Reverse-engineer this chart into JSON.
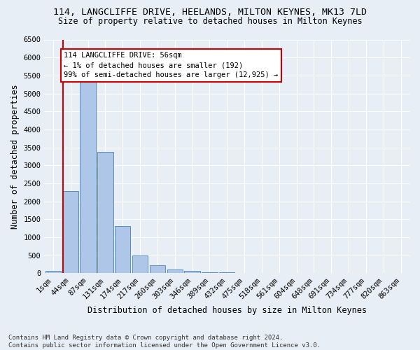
{
  "title_line1": "114, LANGCLIFFE DRIVE, HEELANDS, MILTON KEYNES, MK13 7LD",
  "title_line2": "Size of property relative to detached houses in Milton Keynes",
  "xlabel": "Distribution of detached houses by size in Milton Keynes",
  "ylabel": "Number of detached properties",
  "footnote": "Contains HM Land Registry data © Crown copyright and database right 2024.\nContains public sector information licensed under the Open Government Licence v3.0.",
  "bar_labels": [
    "1sqm",
    "44sqm",
    "87sqm",
    "131sqm",
    "174sqm",
    "217sqm",
    "260sqm",
    "303sqm",
    "346sqm",
    "389sqm",
    "432sqm",
    "475sqm",
    "518sqm",
    "561sqm",
    "604sqm",
    "648sqm",
    "691sqm",
    "734sqm",
    "777sqm",
    "820sqm",
    "863sqm"
  ],
  "bar_values": [
    70,
    2280,
    5400,
    3380,
    1310,
    490,
    210,
    95,
    60,
    30,
    20,
    10,
    0,
    0,
    0,
    0,
    0,
    0,
    0,
    0,
    0
  ],
  "bar_color": "#aec6e8",
  "bar_edge_color": "#5a8fc0",
  "annotation_text": "114 LANGCLIFFE DRIVE: 56sqm\n← 1% of detached houses are smaller (192)\n99% of semi-detached houses are larger (12,925) →",
  "annotation_box_color": "#ffffff",
  "annotation_box_edge_color": "#cc0000",
  "vline_color": "#cc0000",
  "ylim": [
    0,
    6500
  ],
  "yticks": [
    0,
    500,
    1000,
    1500,
    2000,
    2500,
    3000,
    3500,
    4000,
    4500,
    5000,
    5500,
    6000,
    6500
  ],
  "background_color": "#e8eef5",
  "grid_color": "#ffffff",
  "title_fontsize": 9.5,
  "subtitle_fontsize": 8.5,
  "axis_label_fontsize": 8.5,
  "tick_fontsize": 7.5,
  "annotation_fontsize": 7.5,
  "footnote_fontsize": 6.5
}
